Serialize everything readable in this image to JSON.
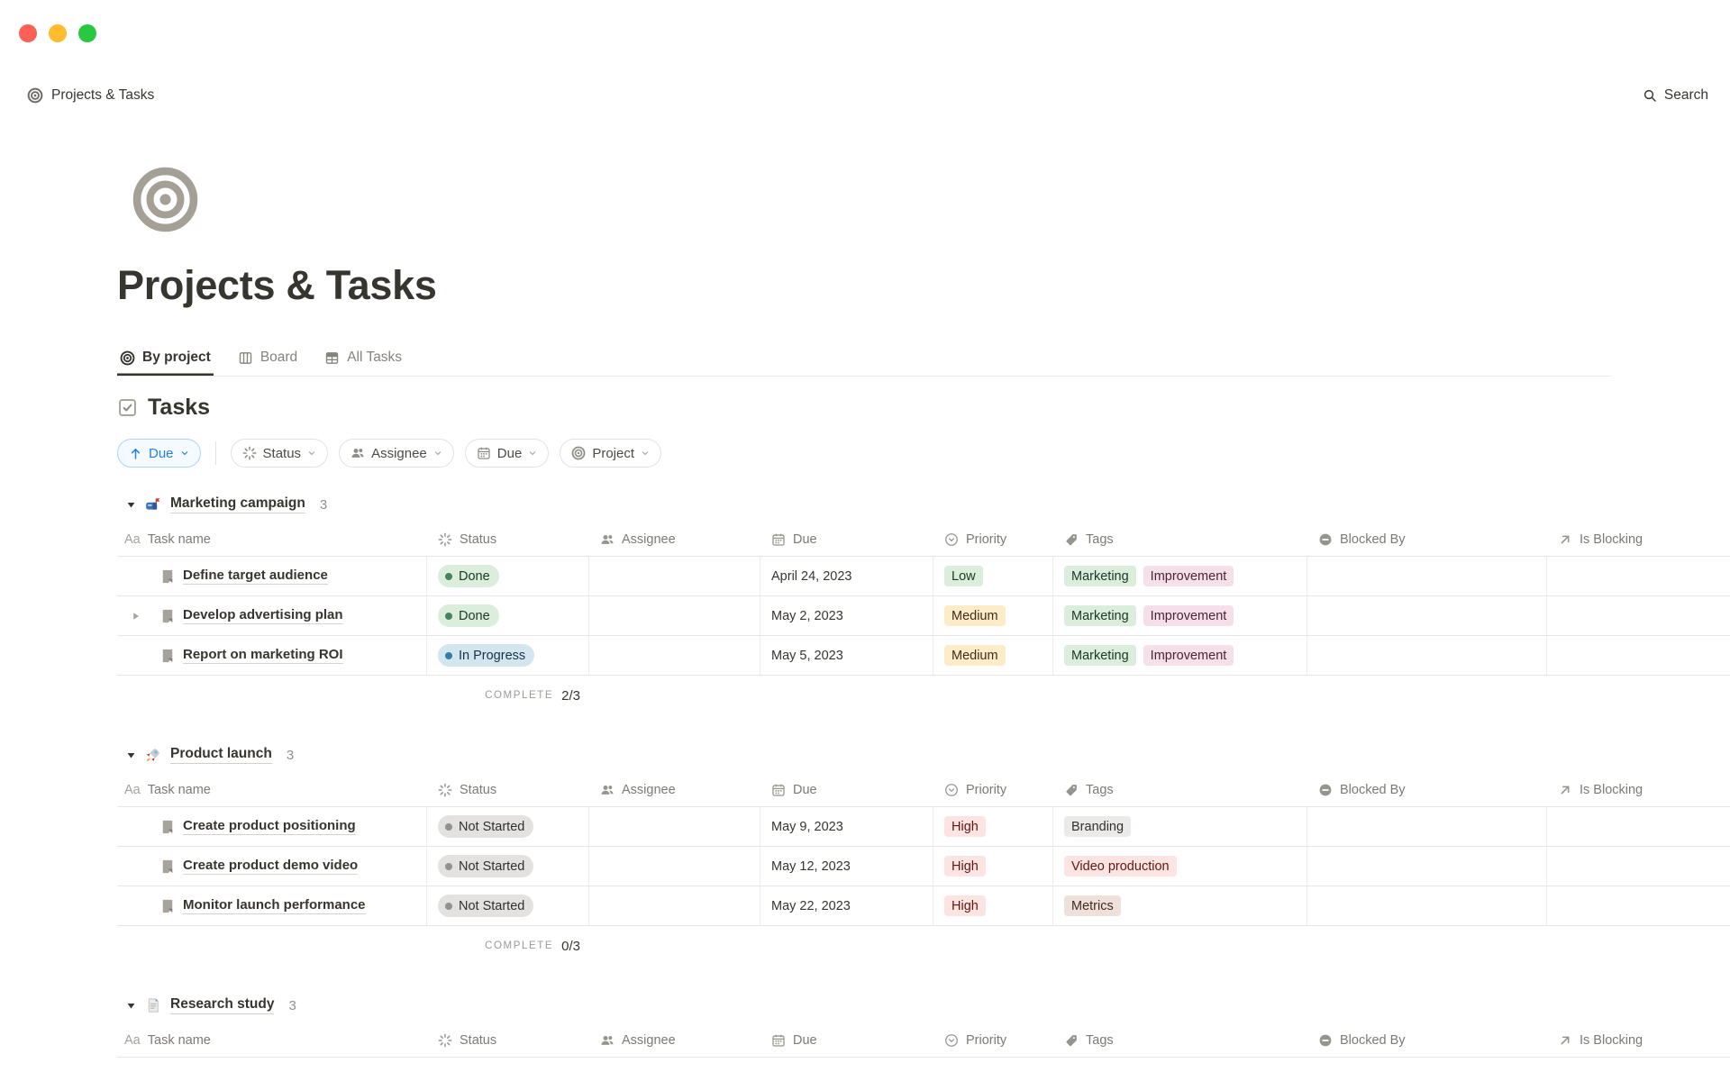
{
  "nav": {
    "breadcrumb": {
      "icon": "target",
      "label": "Projects & Tasks"
    },
    "search": {
      "icon": "search",
      "label": "Search"
    }
  },
  "page": {
    "icon": "target",
    "title": "Projects & Tasks",
    "tabs": [
      {
        "label": "By project",
        "icon": "target",
        "active": true
      },
      {
        "label": "Board",
        "icon": "board",
        "active": false
      },
      {
        "label": "All Tasks",
        "icon": "table",
        "active": false
      }
    ]
  },
  "tasks": {
    "icon": "checkbox",
    "heading": "Tasks",
    "sort_chip": {
      "icon": "arrow-up",
      "label": "Due"
    },
    "filter_chips": [
      {
        "icon": "spinner",
        "label": "Status"
      },
      {
        "icon": "people",
        "label": "Assignee"
      },
      {
        "icon": "calendar",
        "label": "Due"
      },
      {
        "icon": "target",
        "label": "Project"
      }
    ],
    "columns": [
      {
        "label": "Task name",
        "icon": "aa"
      },
      {
        "label": "Status",
        "icon": "spinner"
      },
      {
        "label": "Assignee",
        "icon": "people"
      },
      {
        "label": "Due",
        "icon": "calendar"
      },
      {
        "label": "Priority",
        "icon": "priority"
      },
      {
        "label": "Tags",
        "icon": "tag"
      },
      {
        "label": "Blocked By",
        "icon": "blocked"
      },
      {
        "label": "Is Blocking",
        "icon": "arrow-up-right"
      }
    ],
    "complete_label": "COMPLETE",
    "groups": [
      {
        "icon": "mailbox",
        "name": "Marketing campaign",
        "count": "3",
        "complete": "2/3",
        "rows": [
          {
            "toggle": false,
            "task": "Define target audience",
            "status": {
              "label": "Done",
              "tone": "green"
            },
            "assignee": "",
            "due": "April 24, 2023",
            "priority": {
              "label": "Low",
              "tone": "green"
            },
            "tags": [
              {
                "label": "Marketing",
                "tone": "green"
              },
              {
                "label": "Improvement",
                "tone": "pink"
              }
            ],
            "blocked_by": "",
            "is_blocking": ""
          },
          {
            "toggle": true,
            "task": "Develop advertising plan",
            "status": {
              "label": "Done",
              "tone": "green"
            },
            "assignee": "",
            "due": "May 2, 2023",
            "priority": {
              "label": "Medium",
              "tone": "yellow"
            },
            "tags": [
              {
                "label": "Marketing",
                "tone": "green"
              },
              {
                "label": "Improvement",
                "tone": "pink"
              }
            ],
            "blocked_by": "",
            "is_blocking": ""
          },
          {
            "toggle": false,
            "task": "Report on marketing ROI",
            "status": {
              "label": "In Progress",
              "tone": "blue"
            },
            "assignee": "",
            "due": "May 5, 2023",
            "priority": {
              "label": "Medium",
              "tone": "yellow"
            },
            "tags": [
              {
                "label": "Marketing",
                "tone": "green"
              },
              {
                "label": "Improvement",
                "tone": "pink"
              }
            ],
            "blocked_by": "",
            "is_blocking": ""
          }
        ]
      },
      {
        "icon": "rocket",
        "name": "Product launch",
        "count": "3",
        "complete": "0/3",
        "rows": [
          {
            "toggle": false,
            "task": "Create product positioning",
            "status": {
              "label": "Not Started",
              "tone": "gray"
            },
            "assignee": "",
            "due": "May 9, 2023",
            "priority": {
              "label": "High",
              "tone": "red"
            },
            "tags": [
              {
                "label": "Branding",
                "tone": "lightgray"
              }
            ],
            "blocked_by": "",
            "is_blocking": ""
          },
          {
            "toggle": false,
            "task": "Create product demo video",
            "status": {
              "label": "Not Started",
              "tone": "gray"
            },
            "assignee": "",
            "due": "May 12, 2023",
            "priority": {
              "label": "High",
              "tone": "red"
            },
            "tags": [
              {
                "label": "Video production",
                "tone": "red"
              }
            ],
            "blocked_by": "",
            "is_blocking": ""
          },
          {
            "toggle": false,
            "task": "Monitor launch performance",
            "status": {
              "label": "Not Started",
              "tone": "gray"
            },
            "assignee": "",
            "due": "May 22, 2023",
            "priority": {
              "label": "High",
              "tone": "red"
            },
            "tags": [
              {
                "label": "Metrics",
                "tone": "brown"
              }
            ],
            "blocked_by": "",
            "is_blocking": ""
          }
        ]
      },
      {
        "icon": "bookmark",
        "name": "Research study",
        "count": "3",
        "complete": null,
        "rows": []
      }
    ]
  },
  "colors": {
    "traffic_red": "#fe5f57",
    "traffic_yellow": "#febc2e",
    "traffic_green": "#28c840",
    "accent_blue": "#2383e2",
    "text": "#37352f",
    "secondary_text": "#787774",
    "row_border": "#e7e6e3",
    "pill_green_bg": "#dbeddb",
    "pill_blue_bg": "#d3e5ef",
    "pill_gray_bg": "#e3e2e0",
    "pill_yellow_bg": "#fdecc8",
    "pill_red_bg": "#fbe4e1",
    "pill_pink_bg": "#f5e0e9",
    "pill_brown_bg": "#eee0da",
    "dot_green": "#448361",
    "dot_blue": "#337ea9",
    "dot_gray": "#91918e",
    "page_icon_color": "#a5a096"
  }
}
